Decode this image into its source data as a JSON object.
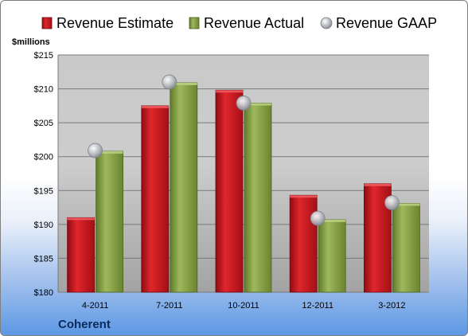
{
  "chart_data": {
    "type": "bar",
    "categories": [
      "4-2011",
      "7-2011",
      "10-2011",
      "12-2011",
      "3-2012"
    ],
    "series": [
      {
        "name": "Revenue Estimate",
        "values": [
          191.0,
          207.5,
          209.8,
          194.3,
          196.0
        ]
      },
      {
        "name": "Revenue Actual",
        "values": [
          200.8,
          210.9,
          207.9,
          190.7,
          193.1
        ]
      },
      {
        "name": "Revenue GAAP",
        "values": [
          200.9,
          211.0,
          207.9,
          190.9,
          193.2
        ]
      }
    ],
    "series_style": [
      "bar",
      "bar",
      "marker"
    ],
    "ylabel": "$millions",
    "ylim": [
      180,
      215
    ],
    "ytick_step": 5,
    "ytick_labels": [
      "$180",
      "$185",
      "$190",
      "$195",
      "$200",
      "$205",
      "$210",
      "$215"
    ],
    "grid": true,
    "legend_position": "top",
    "colors": {
      "estimate": "#c8161d",
      "actual": "#8aa24a",
      "gaap": "#b9bcc4"
    },
    "footer": "Coherent"
  }
}
